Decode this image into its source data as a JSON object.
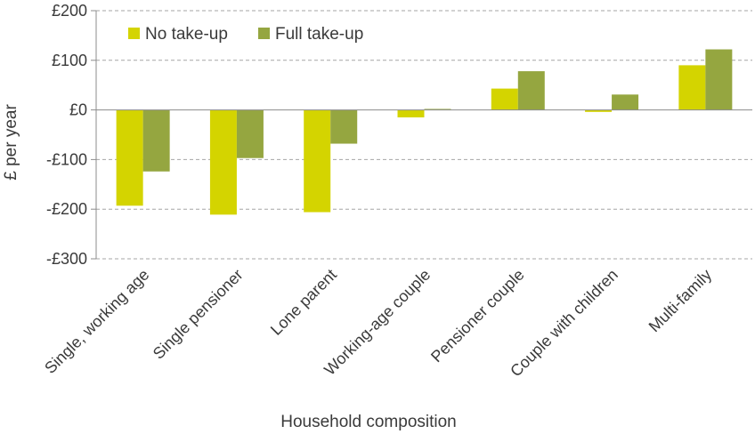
{
  "chart_data": {
    "type": "bar",
    "title": "",
    "xlabel": "Household composition",
    "ylabel": "£ per year",
    "ylim": [
      -300,
      200
    ],
    "yticks": [
      200,
      100,
      0,
      -100,
      -200,
      -300
    ],
    "ytick_labels": [
      "£200",
      "£100",
      "£0",
      "-£100",
      "-£200",
      "-£300"
    ],
    "grid": true,
    "legend_position": "top-left",
    "categories": [
      "Single, working age",
      "Single pensioner",
      "Lone parent",
      "Working-age couple",
      "Pensioner couple",
      "Couple with children",
      "Multi-family"
    ],
    "series": [
      {
        "name": "No take-up",
        "color": "#d4d400",
        "values": [
          -193,
          -211,
          -206,
          -15,
          43,
          -4,
          90
        ]
      },
      {
        "name": "Full take-up",
        "color": "#95a640",
        "values": [
          -124,
          -97,
          -68,
          2,
          78,
          31,
          122
        ]
      }
    ]
  }
}
